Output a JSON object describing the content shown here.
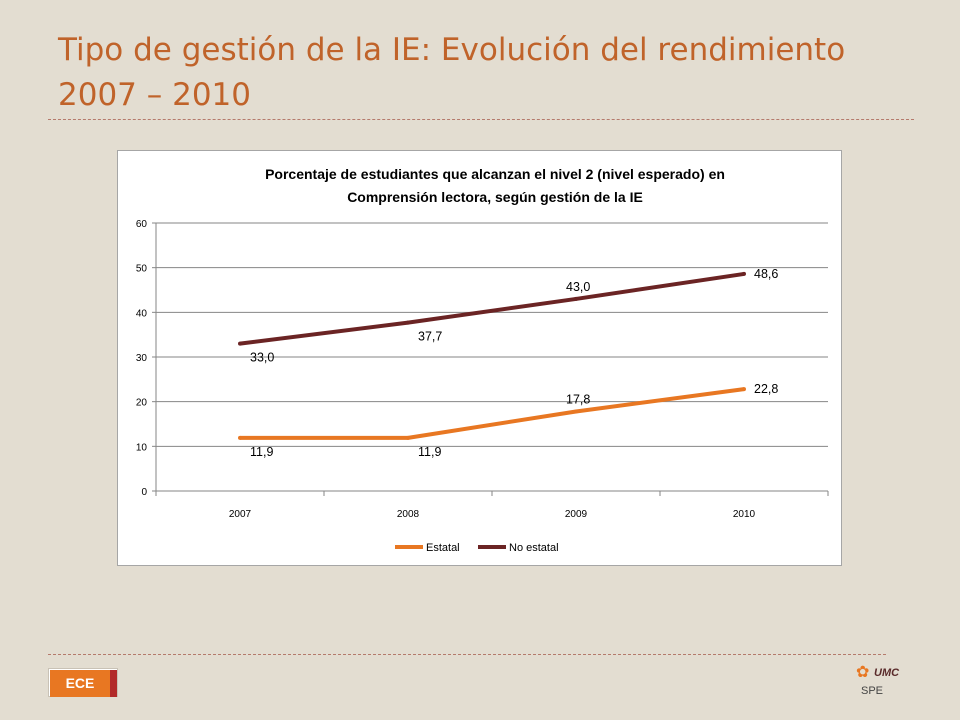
{
  "slide": {
    "title_line1": "Tipo de gestión de la IE: Evolución del rendimiento",
    "title_line2": "2007 – 2010"
  },
  "footer": {
    "badge_label": "ECE",
    "logo_text": "UMC",
    "logo_sub": "SPE"
  },
  "colors": {
    "background": "#e3ddd1",
    "title": "#c0632a",
    "estatal": "#e87722",
    "no_estatal": "#6b2424",
    "badge": "#e87722",
    "badge_strip": "#b22a2a"
  },
  "icons": {
    "logo": "umc-logo-icon"
  },
  "chart_data": {
    "type": "line",
    "title_line1": "Porcentaje de estudiantes que alcanzan el nivel 2 (nivel esperado) en",
    "title_line2": "Comprensión lectora, según gestión de la IE",
    "categories": [
      "2007",
      "2008",
      "2009",
      "2010"
    ],
    "ylim": [
      0,
      60
    ],
    "yticks": [
      "0",
      "10",
      "20",
      "30",
      "40",
      "50",
      "60"
    ],
    "grid": true,
    "legend_position": "bottom",
    "series": [
      {
        "name": "Estatal",
        "values": [
          11.9,
          11.9,
          17.8,
          22.8
        ],
        "labels": [
          "11,9",
          "11,9",
          "17,8",
          "22,8"
        ],
        "color": "#e87722"
      },
      {
        "name": "No estatal",
        "values": [
          33.0,
          37.7,
          43.0,
          48.6
        ],
        "labels": [
          "33,0",
          "37,7",
          "43,0",
          "48,6"
        ],
        "color": "#6b2424"
      }
    ]
  }
}
